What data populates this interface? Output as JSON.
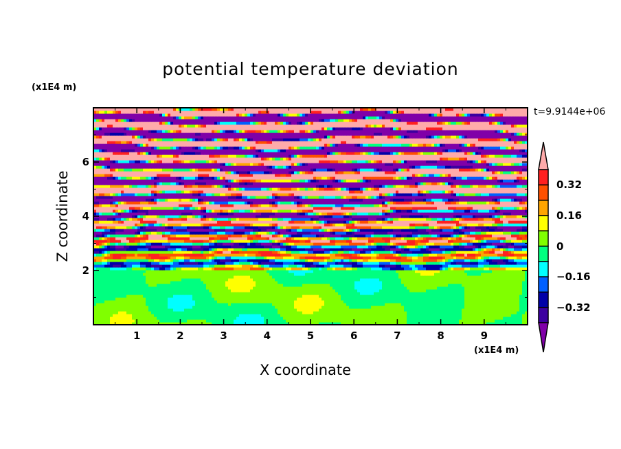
{
  "chart_data": {
    "type": "heatmap",
    "title": "potential temperature deviation",
    "xlabel": "X coordinate",
    "ylabel": "Z coordinate",
    "x_unit": "(x1E4 m)",
    "y_unit": "(x1E4 m)",
    "time_label": "t=9.9144e+06",
    "xlim": [
      0,
      10
    ],
    "ylim": [
      0,
      8
    ],
    "x_ticks": [
      "1",
      "2",
      "3",
      "4",
      "5",
      "6",
      "7",
      "8",
      "9"
    ],
    "y_ticks": [
      "2",
      "4",
      "6"
    ],
    "colorbar": {
      "levels": [
        -0.4,
        -0.32,
        -0.24,
        -0.16,
        -0.08,
        0,
        0.08,
        0.16,
        0.24,
        0.32,
        0.4
      ],
      "tick_labels": [
        "0.32",
        "0.16",
        "0",
        "−0.16",
        "−0.32"
      ],
      "tick_values": [
        0.32,
        0.16,
        0,
        -0.16,
        -0.32
      ],
      "colors": [
        "#3c00a0",
        "#0000a8",
        "#0060ff",
        "#00ffff",
        "#00ff80",
        "#80ff00",
        "#ffff00",
        "#ffa500",
        "#ff5000",
        "#ff2020"
      ],
      "under_color": "#8000a8",
      "over_color": "#ffaaaa",
      "extend": "both"
    },
    "field_description_regions": [
      {
        "z_range": [
          0,
          2
        ],
        "typical_values": [
          -0.08,
          0.08
        ]
      },
      {
        "z_range": [
          2,
          5
        ],
        "typical_values": [
          -0.4,
          0.4
        ]
      },
      {
        "z_range": [
          5,
          8
        ],
        "typical_values": [
          "below -0.4",
          "above 0.4"
        ]
      }
    ]
  }
}
